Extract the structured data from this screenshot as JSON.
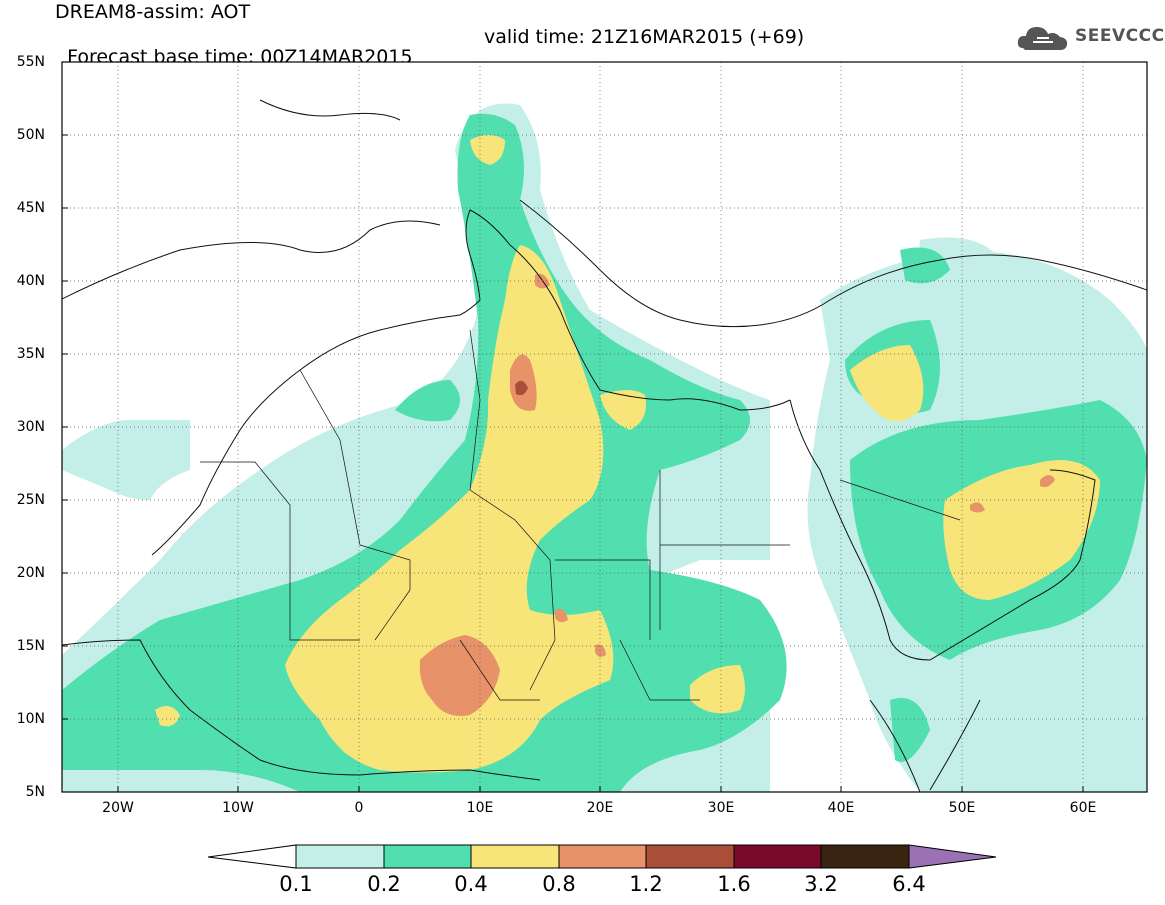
{
  "header": {
    "line1": "DREAM8-assim: AOT",
    "base_time": "Forecast base time: 00Z14MAR2015",
    "valid_time": "valid time: 21Z16MAR2015 (+69)",
    "logo_text": "SEEVCCC",
    "logo_icon": "cloud-icon"
  },
  "map": {
    "lon_range": [
      -25,
      65
    ],
    "lat_range": [
      5,
      55
    ],
    "lat_labels": [
      "55N",
      "50N",
      "45N",
      "40N",
      "35N",
      "30N",
      "25N",
      "20N",
      "15N",
      "10N",
      "5N"
    ],
    "lon_labels": [
      "20W",
      "10W",
      "0",
      "10E",
      "20E",
      "30E",
      "40E",
      "50E",
      "60E"
    ],
    "grid": "dotted"
  },
  "colorbar": {
    "levels": [
      "0.1",
      "0.2",
      "0.4",
      "0.8",
      "1.2",
      "1.6",
      "3.2",
      "6.4"
    ],
    "colors": [
      "#c3efe8",
      "#52dfb0",
      "#f8e57a",
      "#e8926a",
      "#aa4e3a",
      "#7a0a2a",
      "#3a2412",
      "#9a72b4"
    ]
  }
}
